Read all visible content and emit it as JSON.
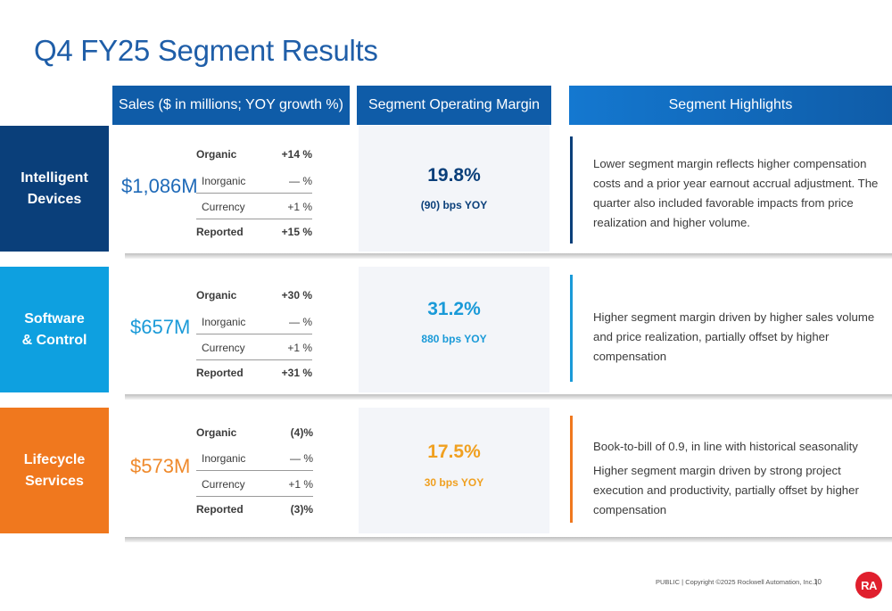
{
  "title": "Q4 FY25 Segment Results",
  "headers": {
    "sales": "Sales ($ in millions; YOY growth %)",
    "margin": "Segment Operating Margin",
    "highlights": "Segment Highlights"
  },
  "colors": {
    "title": "#1f5ea8",
    "header_blue": "#0f5ca8",
    "intelligent_devices": "#0a3f7a",
    "software_control": "#0ea0e0",
    "lifecycle_services": "#f0781e"
  },
  "segments": [
    {
      "name": "Intelligent Devices",
      "name_line1": "Intelligent",
      "name_line2": "Devices",
      "sales": "$1,086M",
      "growth": {
        "organic_label": "Organic",
        "organic": "+14  %",
        "inorganic_label": "Inorganic",
        "inorganic": "—  %",
        "currency_label": "Currency",
        "currency": "+1  %",
        "reported_label": "Reported",
        "reported": "+15  %"
      },
      "margin": "19.8%",
      "margin_change": "(90) bps YOY",
      "highlights": [
        "Lower segment margin reflects higher compensation costs and a prior year earnout accrual adjustment. The quarter also included favorable impacts from price realization and higher volume."
      ]
    },
    {
      "name": "Software & Control",
      "name_line1": "Software",
      "name_line2": "& Control",
      "sales": "$657M",
      "growth": {
        "organic_label": "Organic",
        "organic": "+30  %",
        "inorganic_label": "Inorganic",
        "inorganic": "—  %",
        "currency_label": "Currency",
        "currency": "+1  %",
        "reported_label": "Reported",
        "reported": "+31  %"
      },
      "margin": "31.2%",
      "margin_change": "880 bps YOY",
      "highlights": [
        "Higher segment margin driven by higher sales volume and price realization, partially offset by higher compensation"
      ]
    },
    {
      "name": "Lifecycle Services",
      "name_line1": "Lifecycle",
      "name_line2": "Services",
      "sales": "$573M",
      "growth": {
        "organic_label": "Organic",
        "organic": "(4)%",
        "inorganic_label": "Inorganic",
        "inorganic": "—  %",
        "currency_label": "Currency",
        "currency": "+1  %",
        "reported_label": "Reported",
        "reported": "(3)%"
      },
      "margin": "17.5%",
      "margin_change": "30 bps YOY",
      "highlights": [
        "Book-to-bill of 0.9, in line with historical seasonality",
        "Higher segment margin driven by strong project execution and productivity, partially offset by higher compensation"
      ]
    }
  ],
  "footer": "PUBLIC | Copyright ©2025 Rockwell Automation, Inc. |",
  "page_number": "10",
  "logo_text": "RA"
}
